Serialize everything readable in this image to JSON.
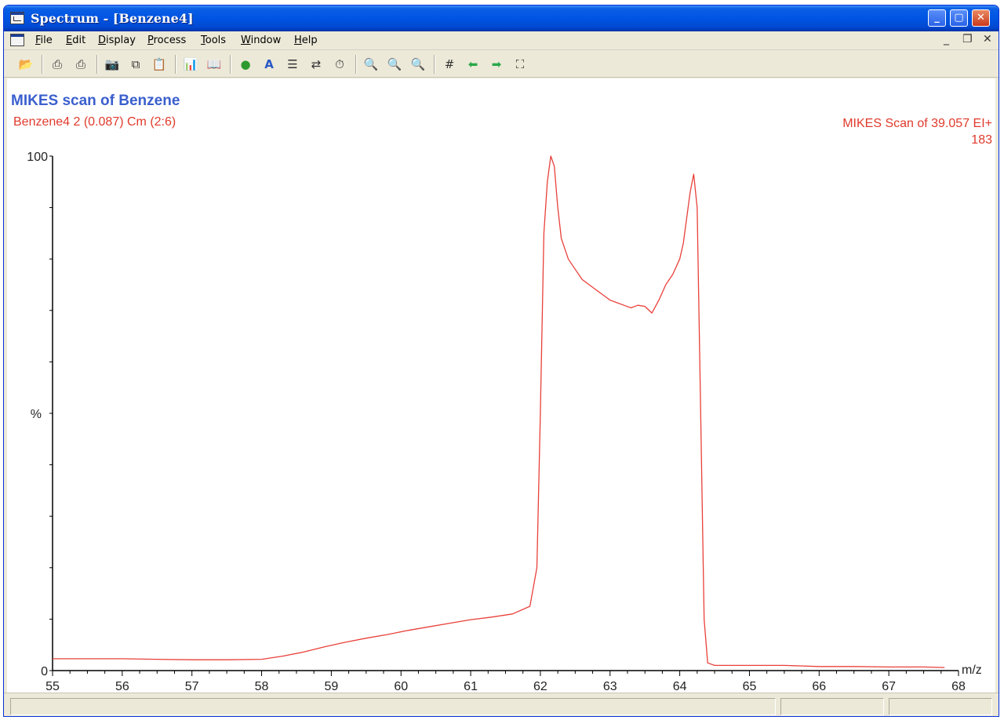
{
  "window": {
    "title": "Spectrum - [Benzene4]",
    "controls": {
      "minimize": "minimize",
      "maximize": "maximize",
      "close": "close"
    }
  },
  "menu": {
    "items": [
      "File",
      "Edit",
      "Display",
      "Process",
      "Tools",
      "Window",
      "Help"
    ],
    "mdi": {
      "minimize": "_",
      "restore": "❐",
      "close": "✕"
    }
  },
  "toolbar": {
    "icons": [
      "open-folder-icon",
      "print-icon",
      "print-preview-icon",
      "camera-icon",
      "copy-icon",
      "paste-icon",
      "bar-chart-icon",
      "book-icon",
      "globe-icon",
      "text-a-icon",
      "stack-icon",
      "transfer-icon",
      "timer-icon",
      "zoom-in-icon",
      "zoom-out-icon",
      "zoom-reset-icon",
      "grid-hash-icon",
      "arrow-left-icon",
      "arrow-right-icon",
      "fit-screen-icon"
    ],
    "glyphs": [
      "📂",
      "⎙",
      "⎙",
      "📷",
      "⧉",
      "📋",
      "📊",
      "📖",
      "●",
      "A",
      "☰",
      "⇄",
      "⏱",
      "🔍",
      "🔍",
      "🔍",
      "#",
      "⬅",
      "➡",
      "⛶"
    ]
  },
  "chart": {
    "title": "MIKES scan of Benzene",
    "subtitle": "Benzene4 2 (0.087) Cm (2:6)",
    "scan_label": "MIKES Scan of 39.057 EI+",
    "scan_count": "183"
  },
  "chart_data": {
    "type": "line",
    "xlabel": "m/z",
    "ylabel": "%",
    "xlim": [
      55,
      68
    ],
    "ylim": [
      0,
      100
    ],
    "xticks": [
      "55",
      "56",
      "57",
      "58",
      "59",
      "60",
      "61",
      "62",
      "63",
      "64",
      "65",
      "66",
      "67",
      "68"
    ],
    "yticks": [
      "0",
      "100"
    ],
    "color": "#e8403a",
    "x": [
      55.0,
      55.5,
      56.0,
      56.5,
      57.0,
      57.5,
      58.0,
      58.3,
      58.6,
      58.9,
      59.2,
      59.5,
      59.8,
      60.1,
      60.4,
      60.7,
      61.0,
      61.3,
      61.6,
      61.85,
      61.95,
      62.0,
      62.05,
      62.1,
      62.15,
      62.2,
      62.25,
      62.3,
      62.4,
      62.5,
      62.6,
      62.7,
      62.8,
      62.9,
      63.0,
      63.1,
      63.2,
      63.3,
      63.4,
      63.5,
      63.6,
      63.7,
      63.8,
      63.9,
      64.0,
      64.05,
      64.1,
      64.15,
      64.2,
      64.25,
      64.3,
      64.35,
      64.4,
      64.5,
      65.0,
      65.5,
      66.0,
      66.5,
      67.0,
      67.5,
      67.8
    ],
    "y": [
      2.3,
      2.3,
      2.3,
      2.2,
      2.1,
      2.1,
      2.2,
      2.8,
      3.6,
      4.6,
      5.5,
      6.3,
      7.0,
      7.8,
      8.5,
      9.2,
      9.9,
      10.4,
      11.0,
      12.5,
      20.0,
      50.0,
      85.0,
      95.0,
      100.0,
      98.0,
      90.0,
      84.0,
      80.0,
      78.0,
      76.0,
      75.0,
      74.0,
      73.0,
      72.0,
      71.5,
      71.0,
      70.5,
      71.0,
      70.8,
      69.5,
      72.0,
      75.0,
      77.0,
      80.0,
      83.0,
      88.0,
      93.0,
      96.5,
      90.0,
      50.0,
      10.0,
      1.5,
      1.0,
      1.0,
      1.0,
      0.8,
      0.8,
      0.7,
      0.7,
      0.6
    ]
  },
  "statusbar": {
    "panes": [
      "",
      "",
      ""
    ]
  }
}
